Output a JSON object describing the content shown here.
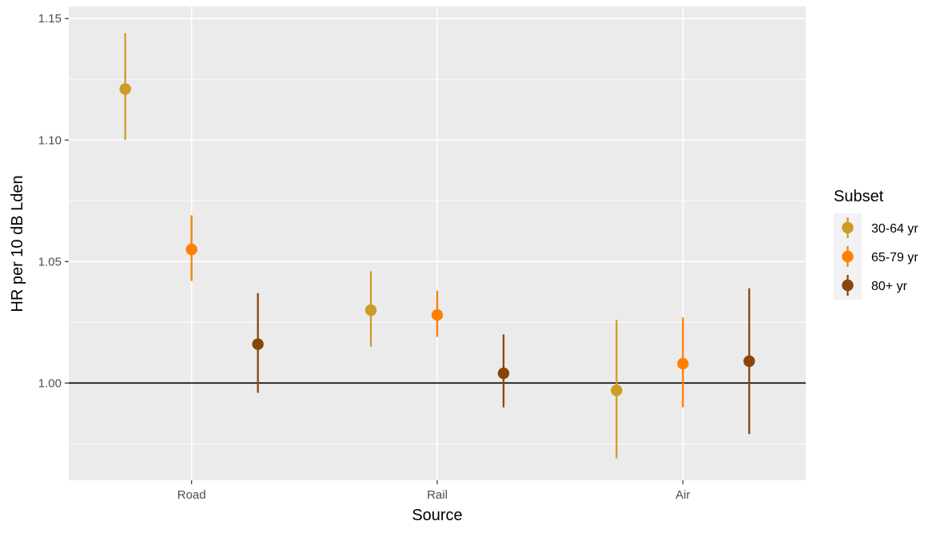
{
  "chart_data": {
    "type": "scatter",
    "xlabel": "Source",
    "ylabel": "HR per 10 dB Lden",
    "categories": [
      "Road",
      "Rail",
      "Air"
    ],
    "ylim": [
      0.96,
      1.155
    ],
    "yticks": [
      1.0,
      1.05,
      1.1,
      1.15
    ],
    "ytick_labels": [
      "1.00",
      "1.05",
      "1.10",
      "1.15"
    ],
    "reference_line": 1.0,
    "grid": true,
    "legend": {
      "title": "Subset",
      "position": "right"
    },
    "series": [
      {
        "name": "30-64 yr",
        "color": "#CC9C24",
        "values": [
          1.121,
          1.03,
          0.997
        ],
        "lower": [
          1.1,
          1.015,
          0.969
        ],
        "upper": [
          1.144,
          1.046,
          1.026
        ]
      },
      {
        "name": "65-79 yr",
        "color": "#FF8000",
        "values": [
          1.055,
          1.028,
          1.008
        ],
        "lower": [
          1.042,
          1.019,
          0.99
        ],
        "upper": [
          1.069,
          1.038,
          1.027
        ]
      },
      {
        "name": "80+ yr",
        "color": "#8B4409",
        "values": [
          1.016,
          1.004,
          1.009
        ],
        "lower": [
          0.996,
          0.99,
          0.979
        ],
        "upper": [
          1.037,
          1.02,
          1.039
        ]
      }
    ]
  }
}
